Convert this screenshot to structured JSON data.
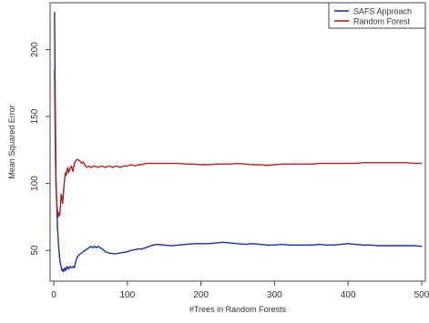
{
  "chart_data": {
    "type": "line",
    "title": "",
    "xlabel": "#Trees in Random Forests",
    "ylabel": "Mean Squared Error",
    "xlim": [
      -5,
      505
    ],
    "ylim": [
      27,
      235
    ],
    "x_ticks": [
      0,
      100,
      200,
      300,
      400,
      500
    ],
    "y_ticks": [
      50,
      100,
      150,
      200
    ],
    "grid": false,
    "legend_position": "top-right",
    "series": [
      {
        "name": "SAFS Approach",
        "color": "#1a2fa0",
        "points": [
          [
            1,
            228
          ],
          [
            2,
            160
          ],
          [
            3,
            105
          ],
          [
            4,
            85
          ],
          [
            5,
            68
          ],
          [
            6,
            58
          ],
          [
            7,
            50
          ],
          [
            8,
            44
          ],
          [
            9,
            40
          ],
          [
            10,
            38
          ],
          [
            11,
            35
          ],
          [
            12,
            36
          ],
          [
            13,
            34
          ],
          [
            14,
            35
          ],
          [
            15,
            37
          ],
          [
            16,
            35
          ],
          [
            17,
            36
          ],
          [
            18,
            38
          ],
          [
            19,
            37
          ],
          [
            20,
            36
          ],
          [
            22,
            38
          ],
          [
            24,
            37
          ],
          [
            26,
            38
          ],
          [
            28,
            37
          ],
          [
            30,
            42
          ],
          [
            32,
            45
          ],
          [
            35,
            47
          ],
          [
            38,
            48
          ],
          [
            40,
            49
          ],
          [
            43,
            50
          ],
          [
            45,
            51
          ],
          [
            48,
            52
          ],
          [
            50,
            53
          ],
          [
            53,
            52
          ],
          [
            55,
            53
          ],
          [
            58,
            52
          ],
          [
            60,
            53
          ],
          [
            63,
            52
          ],
          [
            66,
            51
          ],
          [
            70,
            49
          ],
          [
            75,
            48
          ],
          [
            80,
            47.5
          ],
          [
            85,
            47.5
          ],
          [
            90,
            48
          ],
          [
            95,
            48.5
          ],
          [
            100,
            49
          ],
          [
            105,
            50
          ],
          [
            110,
            50.5
          ],
          [
            115,
            51
          ],
          [
            120,
            51
          ],
          [
            125,
            52
          ],
          [
            130,
            53
          ],
          [
            135,
            54
          ],
          [
            140,
            54.5
          ],
          [
            150,
            54
          ],
          [
            160,
            53.5
          ],
          [
            170,
            54
          ],
          [
            180,
            54.5
          ],
          [
            190,
            55
          ],
          [
            200,
            55
          ],
          [
            210,
            55
          ],
          [
            220,
            55.5
          ],
          [
            230,
            56
          ],
          [
            240,
            55.5
          ],
          [
            250,
            55
          ],
          [
            260,
            54.5
          ],
          [
            270,
            55
          ],
          [
            280,
            54.5
          ],
          [
            290,
            54
          ],
          [
            300,
            54
          ],
          [
            310,
            54.5
          ],
          [
            320,
            54
          ],
          [
            330,
            54
          ],
          [
            340,
            54
          ],
          [
            350,
            54
          ],
          [
            360,
            54.5
          ],
          [
            370,
            54
          ],
          [
            380,
            54
          ],
          [
            390,
            54.5
          ],
          [
            400,
            55
          ],
          [
            410,
            54.5
          ],
          [
            420,
            54
          ],
          [
            430,
            54
          ],
          [
            440,
            53.5
          ],
          [
            450,
            53.5
          ],
          [
            460,
            53.5
          ],
          [
            470,
            53.5
          ],
          [
            480,
            53.5
          ],
          [
            490,
            53.5
          ],
          [
            500,
            53
          ]
        ]
      },
      {
        "name": "Random Forest",
        "color": "#b02020",
        "points": [
          [
            1,
            185
          ],
          [
            2,
            128
          ],
          [
            3,
            98
          ],
          [
            4,
            85
          ],
          [
            5,
            80
          ],
          [
            6,
            75
          ],
          [
            7,
            78
          ],
          [
            8,
            76
          ],
          [
            9,
            82
          ],
          [
            10,
            92
          ],
          [
            11,
            90
          ],
          [
            12,
            85
          ],
          [
            13,
            92
          ],
          [
            14,
            99
          ],
          [
            15,
            105
          ],
          [
            16,
            108
          ],
          [
            17,
            106
          ],
          [
            18,
            110
          ],
          [
            19,
            112
          ],
          [
            20,
            108
          ],
          [
            22,
            111
          ],
          [
            24,
            113
          ],
          [
            26,
            109
          ],
          [
            28,
            115
          ],
          [
            30,
            117
          ],
          [
            32,
            118
          ],
          [
            35,
            117
          ],
          [
            38,
            115
          ],
          [
            40,
            116
          ],
          [
            43,
            113
          ],
          [
            45,
            112
          ],
          [
            48,
            113
          ],
          [
            50,
            112
          ],
          [
            55,
            113
          ],
          [
            60,
            112
          ],
          [
            65,
            113
          ],
          [
            70,
            112
          ],
          [
            75,
            113
          ],
          [
            80,
            112
          ],
          [
            85,
            113
          ],
          [
            90,
            112
          ],
          [
            95,
            113
          ],
          [
            100,
            113
          ],
          [
            105,
            114
          ],
          [
            110,
            113
          ],
          [
            115,
            114
          ],
          [
            120,
            114
          ],
          [
            125,
            115
          ],
          [
            130,
            115
          ],
          [
            140,
            115
          ],
          [
            150,
            115
          ],
          [
            160,
            115
          ],
          [
            170,
            115
          ],
          [
            180,
            114.5
          ],
          [
            190,
            114.5
          ],
          [
            200,
            114
          ],
          [
            210,
            114
          ],
          [
            220,
            114.5
          ],
          [
            230,
            114.5
          ],
          [
            240,
            114.5
          ],
          [
            250,
            115
          ],
          [
            260,
            114.5
          ],
          [
            270,
            114
          ],
          [
            280,
            114
          ],
          [
            290,
            113.5
          ],
          [
            300,
            114
          ],
          [
            310,
            114.5
          ],
          [
            320,
            114.5
          ],
          [
            330,
            114.5
          ],
          [
            340,
            114.5
          ],
          [
            350,
            114.5
          ],
          [
            360,
            115
          ],
          [
            370,
            115
          ],
          [
            380,
            115
          ],
          [
            390,
            115
          ],
          [
            400,
            115
          ],
          [
            410,
            115
          ],
          [
            420,
            115.5
          ],
          [
            430,
            115.5
          ],
          [
            440,
            115.5
          ],
          [
            450,
            115.5
          ],
          [
            460,
            115.5
          ],
          [
            470,
            115.5
          ],
          [
            480,
            115.5
          ],
          [
            490,
            115
          ],
          [
            500,
            115
          ]
        ]
      }
    ]
  }
}
